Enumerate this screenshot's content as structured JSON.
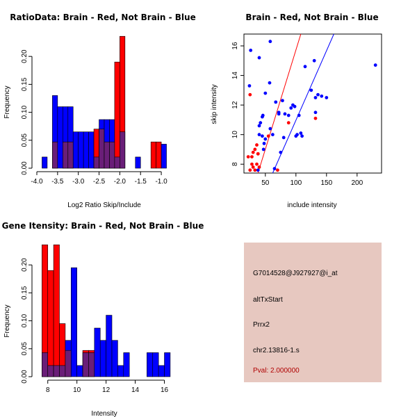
{
  "colors": {
    "red": "#ff0000",
    "blue": "#0000ff",
    "overlap": "#6a1e78",
    "info_bg": "#e7c8c0",
    "pval_text": "#b00000"
  },
  "chart_data": [
    {
      "id": "ratio-hist",
      "type": "bar",
      "title": "RatioData: Brain - Red, Not Brain - Blue",
      "xlabel": "Log2 Ratio Skip/Include",
      "ylabel": "Frequency",
      "xlim": [
        -4.0,
        -0.75
      ],
      "ylim": [
        0,
        0.24
      ],
      "xticks": [
        -4.0,
        -3.5,
        -3.0,
        -2.5,
        -2.0,
        -1.5,
        -1.0
      ],
      "xtick_labels": [
        "-4.0",
        "-3.5",
        "-3.0",
        "-2.5",
        "-2.0",
        "-1.5",
        "-1.0"
      ],
      "yticks": [
        0.0,
        0.05,
        0.1,
        0.15,
        0.2
      ],
      "ytick_labels": [
        "0.00",
        "0.05",
        "0.10",
        "0.15",
        "0.20"
      ],
      "bin_width": 0.125,
      "bin_starts": [
        -3.875,
        -3.75,
        -3.625,
        -3.5,
        -3.375,
        -3.25,
        -3.125,
        -3.0,
        -2.875,
        -2.75,
        -2.625,
        -2.5,
        -2.375,
        -2.25,
        -2.125,
        -2.0,
        -1.875,
        -1.75,
        -1.625,
        -1.5,
        -1.375,
        -1.25,
        -1.125,
        -1.0
      ],
      "series": [
        {
          "name": "Not Brain",
          "color": "blue",
          "values": [
            0.02,
            0,
            0.13,
            0.11,
            0.11,
            0.11,
            0.065,
            0.065,
            0.065,
            0.065,
            0.02,
            0.087,
            0.087,
            0.087,
            0.02,
            0.065,
            0,
            0,
            0.02,
            0,
            0,
            0,
            0,
            0.043
          ]
        },
        {
          "name": "Brain",
          "color": "red",
          "values": [
            0,
            0,
            0.047,
            0,
            0.047,
            0.047,
            0,
            0,
            0,
            0,
            0.07,
            0.07,
            0.047,
            0.047,
            0.19,
            0.236,
            0,
            0,
            0,
            0,
            0,
            0.047,
            0.047,
            0
          ]
        }
      ]
    },
    {
      "id": "scatter",
      "type": "scatter",
      "title": "Brain - Red, Not Brain - Blue",
      "xlabel": "include intensity",
      "ylabel": "skip intensity",
      "xlim": [
        15,
        240
      ],
      "ylim": [
        7.4,
        16.8
      ],
      "xticks": [
        50,
        100,
        150,
        200
      ],
      "xtick_labels": [
        "50",
        "100",
        "150",
        "200"
      ],
      "yticks": [
        8,
        10,
        12,
        14,
        16
      ],
      "ytick_labels": [
        "8",
        "10",
        "12",
        "14",
        "16"
      ],
      "series": [
        {
          "name": "Not Brain",
          "color": "blue",
          "points": [
            [
              26,
              15.7
            ],
            [
              24,
              13.3
            ],
            [
              40,
              15.2
            ],
            [
              58,
              16.3
            ],
            [
              57,
              13.5
            ],
            [
              50,
              12.8
            ],
            [
              40,
              10.6
            ],
            [
              42,
              10.8
            ],
            [
              45,
              11.2
            ],
            [
              46,
              11.3
            ],
            [
              40,
              10.0
            ],
            [
              45,
              9.9
            ],
            [
              50,
              9.7
            ],
            [
              48,
              9.4
            ],
            [
              47,
              9.0
            ],
            [
              58,
              10.4
            ],
            [
              62,
              10.0
            ],
            [
              67,
              12.2
            ],
            [
              72,
              11.5
            ],
            [
              72,
              11.4
            ],
            [
              78,
              12.3
            ],
            [
              82,
              11.4
            ],
            [
              88,
              11.3
            ],
            [
              92,
              11.8
            ],
            [
              95,
              12.0
            ],
            [
              98,
              11.9
            ],
            [
              100,
              9.9
            ],
            [
              102,
              10.0
            ],
            [
              108,
              10.1
            ],
            [
              110,
              9.9
            ],
            [
              115,
              14.6
            ],
            [
              130,
              15.0
            ],
            [
              125,
              13.0
            ],
            [
              132,
              12.5
            ],
            [
              136,
              12.7
            ],
            [
              142,
              12.6
            ],
            [
              150,
              12.5
            ],
            [
              132,
              11.5
            ],
            [
              105,
              11.3
            ],
            [
              80,
              9.8
            ],
            [
              75,
              8.8
            ],
            [
              65,
              7.7
            ],
            [
              38,
              7.6
            ],
            [
              230,
              14.7
            ]
          ]
        },
        {
          "name": "Brain",
          "color": "red",
          "points": [
            [
              25,
              12.7
            ],
            [
              22,
              8.5
            ],
            [
              28,
              8.5
            ],
            [
              30,
              8.8
            ],
            [
              33,
              9.0
            ],
            [
              36,
              9.3
            ],
            [
              38,
              8.7
            ],
            [
              28,
              8.0
            ],
            [
              30,
              7.8
            ],
            [
              33,
              7.6
            ],
            [
              36,
              8.0
            ],
            [
              40,
              7.8
            ],
            [
              25,
              7.6
            ],
            [
              55,
              9.9
            ],
            [
              88,
              10.8
            ],
            [
              132,
              11.1
            ],
            [
              70,
              7.6
            ],
            [
              38,
              8.7
            ]
          ]
        }
      ],
      "fit_lines": [
        {
          "color": "red",
          "points": [
            [
              38,
              7.4
            ],
            [
              108,
              16.8
            ]
          ]
        },
        {
          "color": "blue",
          "points": [
            [
              62,
              7.4
            ],
            [
              162,
              16.8
            ]
          ]
        }
      ]
    },
    {
      "id": "intensity-hist",
      "type": "bar",
      "title": "Gene Itensity: Brain - Red, Not Brain - Blue",
      "xlabel": "Intensity",
      "ylabel": "Frequency",
      "xlim": [
        7.25,
        16.5
      ],
      "ylim": [
        0,
        0.24
      ],
      "xticks": [
        8,
        10,
        12,
        14,
        16
      ],
      "xtick_labels": [
        "8",
        "10",
        "12",
        "14",
        "16"
      ],
      "yticks": [
        0.0,
        0.05,
        0.1,
        0.15,
        0.2
      ],
      "ytick_labels": [
        "0.00",
        "0.05",
        "0.10",
        "0.15",
        "0.20"
      ],
      "bin_width": 0.4,
      "bin_starts": [
        7.6,
        8.0,
        8.4,
        8.8,
        9.2,
        9.6,
        10.0,
        10.4,
        10.8,
        11.2,
        11.6,
        12.0,
        12.4,
        12.8,
        13.2,
        13.6,
        14.0,
        14.4,
        14.8,
        15.2,
        15.6,
        16.0
      ],
      "series": [
        {
          "name": "Not Brain",
          "color": "blue",
          "values": [
            0.043,
            0.02,
            0.02,
            0.02,
            0.065,
            0.195,
            0.02,
            0.043,
            0.043,
            0.087,
            0.065,
            0.11,
            0.065,
            0.02,
            0.043,
            0,
            0,
            0,
            0.043,
            0.043,
            0.02,
            0.043
          ]
        },
        {
          "name": "Brain",
          "color": "red",
          "values": [
            0.236,
            0.19,
            0.236,
            0.095,
            0.047,
            0,
            0,
            0.047,
            0.047,
            0,
            0,
            0,
            0,
            0,
            0,
            0,
            0,
            0,
            0,
            0,
            0,
            0
          ]
        }
      ]
    }
  ],
  "info_panel": {
    "probe": "G7014528@J927927@i_at",
    "event_type": "altTxStart",
    "gene": "Prrx2",
    "location": "chr2.13816-1.s",
    "pval": "Pval: 2.000000"
  }
}
